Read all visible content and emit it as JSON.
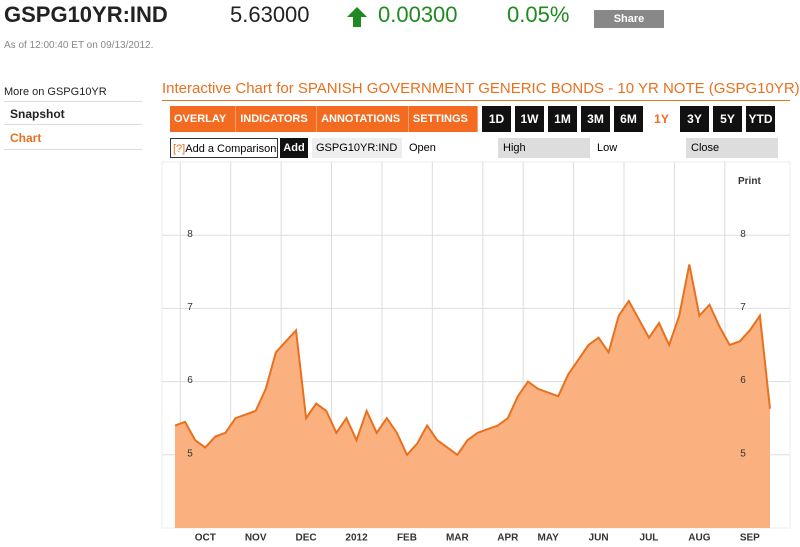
{
  "header": {
    "symbol": "GSPG10YR:IND",
    "price": "5.63000",
    "change": "0.00300",
    "change_pct": "0.05%",
    "share": "Share",
    "timestamp": "As of 12:00:40 ET on 09/13/2012."
  },
  "sidebar": {
    "title": "More on GSPG10YR",
    "links": [
      "Snapshot",
      "Chart"
    ]
  },
  "chart_title": "Interactive Chart for SPANISH GOVERNMENT GENERIC BONDS - 10 YR NOTE (GSPG10YR)",
  "toolbar": {
    "menus": [
      "OVERLAY ▾",
      "INDICATORS ▾",
      "ANNOTATIONS ▾",
      "SETTINGS ▾"
    ],
    "ranges": [
      "1D",
      "1W",
      "1M",
      "3M",
      "6M",
      "1Y",
      "3Y",
      "5Y",
      "YTD"
    ]
  },
  "comparison": {
    "help": "[?]",
    "placeholder": "Add a Comparison",
    "add": "Add",
    "symbol": "GSPG10YR:IND",
    "fields": [
      "Open",
      "High",
      "Low",
      "Close"
    ]
  },
  "print": "Print",
  "chart_data": {
    "type": "area",
    "categories": [
      null,
      null,
      null,
      "OCT",
      null,
      null,
      null,
      null,
      "NOV",
      null,
      null,
      null,
      null,
      "DEC",
      null,
      null,
      null,
      null,
      "2012",
      null,
      null,
      null,
      null,
      "FEB",
      null,
      null,
      null,
      null,
      "MAR",
      null,
      null,
      null,
      null,
      "APR",
      null,
      null,
      null,
      "MAY",
      null,
      null,
      null,
      null,
      "JUN",
      null,
      null,
      null,
      null,
      "JUL",
      null,
      null,
      null,
      null,
      "AUG",
      null,
      null,
      null,
      null,
      "SEP",
      null,
      null
    ],
    "values": [
      5.4,
      5.45,
      5.2,
      5.1,
      5.25,
      5.3,
      5.5,
      5.55,
      5.6,
      5.9,
      6.4,
      6.55,
      6.7,
      5.5,
      5.7,
      5.6,
      5.3,
      5.5,
      5.2,
      5.6,
      5.3,
      5.5,
      5.3,
      5.0,
      5.15,
      5.4,
      5.2,
      5.1,
      5.0,
      5.2,
      5.3,
      5.35,
      5.4,
      5.5,
      5.8,
      6.0,
      5.9,
      5.85,
      5.8,
      6.1,
      6.3,
      6.5,
      6.6,
      6.4,
      6.9,
      7.1,
      6.85,
      6.6,
      6.8,
      6.5,
      6.9,
      7.6,
      6.9,
      7.05,
      6.75,
      6.5,
      6.55,
      6.7,
      6.9,
      5.63
    ],
    "color": "#e8711f",
    "fill": "#fbb080",
    "ylim": [
      4,
      9
    ],
    "yticks": [
      5,
      6,
      7,
      8
    ],
    "grid": true
  }
}
